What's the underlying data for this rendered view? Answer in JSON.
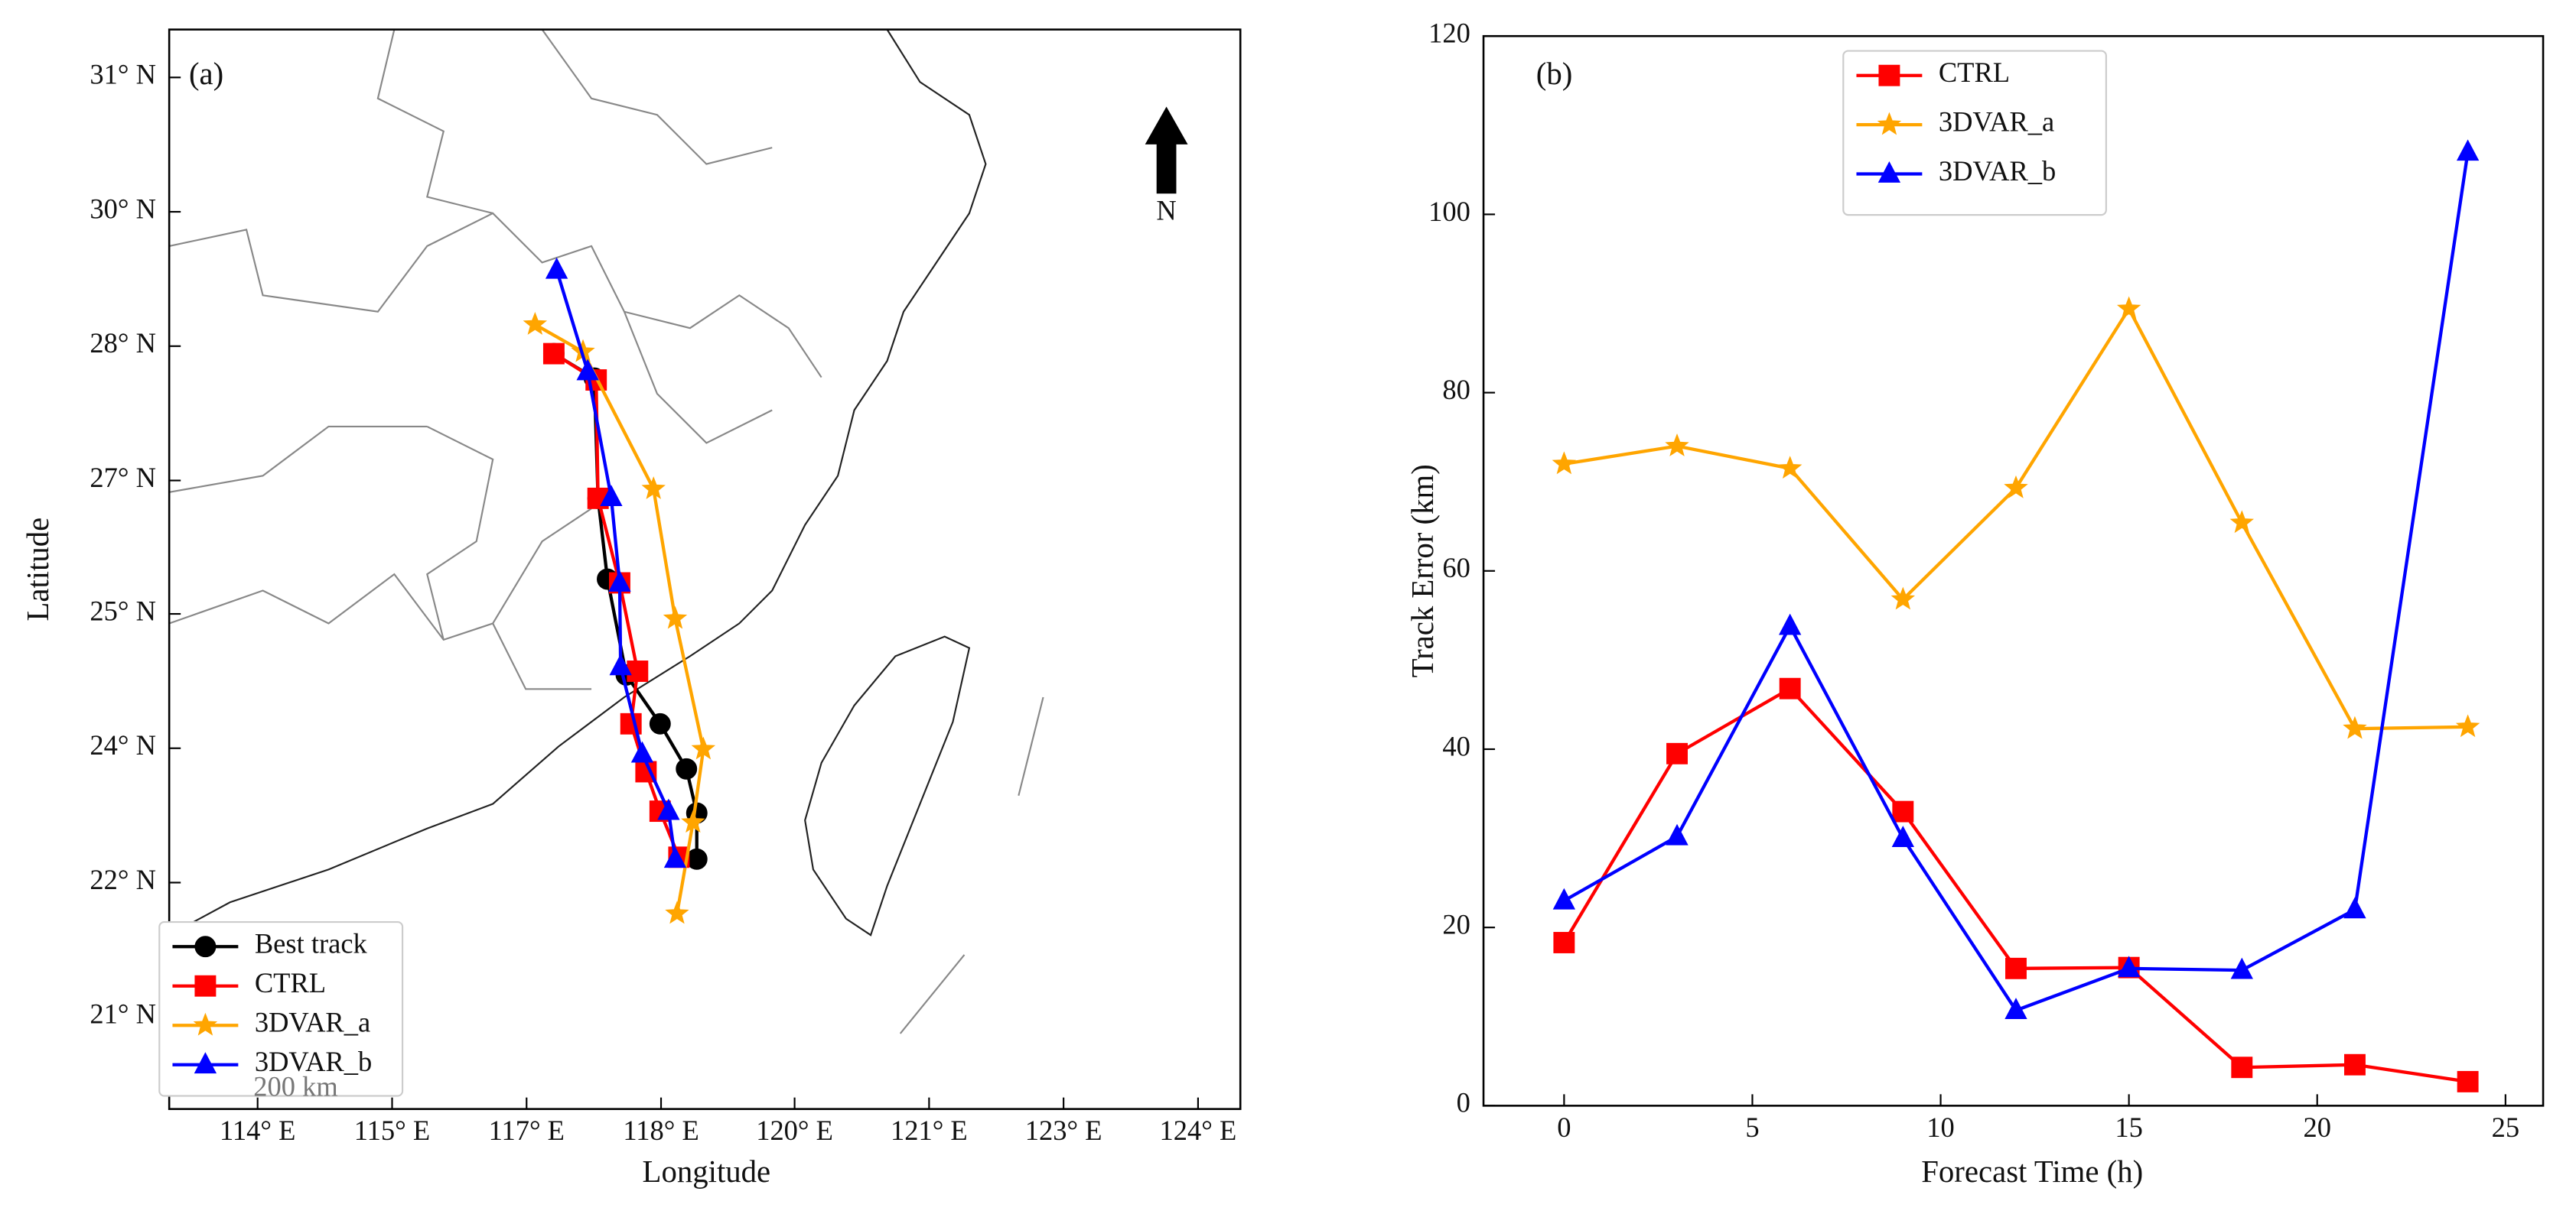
{
  "chart_data": [
    {
      "type": "line",
      "panel_label": "(a)",
      "north_label": "N",
      "scale_label": "200 km",
      "x_label": "Longitude",
      "y_label": "Latitude",
      "xlim": [
        113.06,
        124.45
      ],
      "ylim": [
        20.02,
        31.51
      ],
      "xticks": [
        {
          "value": 114,
          "label": "114° E"
        },
        {
          "value": 115.43,
          "label": "115° E"
        },
        {
          "value": 116.86,
          "label": "117° E"
        },
        {
          "value": 118.29,
          "label": "118° E"
        },
        {
          "value": 119.71,
          "label": "120° E"
        },
        {
          "value": 121.14,
          "label": "121° E"
        },
        {
          "value": 122.57,
          "label": "123° E"
        },
        {
          "value": 124,
          "label": "124° E"
        }
      ],
      "yticks": [
        {
          "value": 31,
          "label": "31° N"
        },
        {
          "value": 29.57,
          "label": "30° N"
        },
        {
          "value": 28.14,
          "label": "28° N"
        },
        {
          "value": 26.71,
          "label": "27° N"
        },
        {
          "value": 25.29,
          "label": "25° N"
        },
        {
          "value": 23.86,
          "label": "24° N"
        },
        {
          "value": 22.43,
          "label": "22° N"
        },
        {
          "value": 21,
          "label": "21° N"
        }
      ],
      "legend": "lower left",
      "series": [
        {
          "name": "Best track",
          "color": "#000000",
          "marker": "circle",
          "x": [
            117.15,
            117.58,
            117.62,
            117.72,
            117.92,
            118.28,
            118.56,
            118.67,
            118.67
          ],
          "values": [
            28.06,
            27.8,
            26.52,
            25.66,
            24.64,
            24.12,
            23.64,
            23.17,
            22.68
          ]
        },
        {
          "name": "CTRL",
          "color": "#ff0000",
          "marker": "square",
          "x": [
            117.15,
            117.6,
            117.62,
            117.85,
            118.04,
            117.97,
            118.13,
            118.28,
            118.48
          ],
          "values": [
            28.06,
            27.78,
            26.52,
            25.62,
            24.68,
            24.12,
            23.61,
            23.19,
            22.7
          ]
        },
        {
          "name": "3DVAR_a",
          "color": "#ffa500",
          "marker": "star",
          "x": [
            116.95,
            117.46,
            118.21,
            118.44,
            118.74,
            118.63,
            118.46
          ],
          "values": [
            28.37,
            28.08,
            26.62,
            25.24,
            23.85,
            23.07,
            22.1
          ]
        },
        {
          "name": "3DVAR_b",
          "color": "#0000ff",
          "marker": "triangle",
          "x": [
            117.18,
            117.51,
            117.76,
            117.85,
            117.86,
            118.09,
            118.37,
            118.44
          ],
          "values": [
            28.95,
            27.87,
            26.53,
            25.62,
            24.73,
            23.8,
            23.19,
            22.68
          ]
        }
      ]
    },
    {
      "type": "line",
      "panel_label": "(b)",
      "x_label": "Forecast Time (h)",
      "y_label": "Track Error (km)",
      "xlim": [
        -2.14,
        26
      ],
      "ylim": [
        0,
        120
      ],
      "xticks": [
        0,
        5,
        10,
        15,
        20,
        25
      ],
      "yticks": [
        0,
        20,
        40,
        60,
        80,
        100,
        120
      ],
      "legend": "upper left",
      "x": [
        0,
        3,
        6,
        9,
        12,
        15,
        18,
        21,
        24
      ],
      "series": [
        {
          "name": "CTRL",
          "color": "#ff0000",
          "marker": "square",
          "values": [
            18.3,
            39.5,
            46.8,
            33,
            15.4,
            15.5,
            4.3,
            4.6,
            2.7
          ]
        },
        {
          "name": "3DVAR_a",
          "color": "#ffa500",
          "marker": "star",
          "values": [
            72,
            74,
            71.5,
            56.8,
            69.3,
            89.4,
            65.4,
            42.3,
            42.5
          ]
        },
        {
          "name": "3DVAR_b",
          "color": "#0000ff",
          "marker": "triangle",
          "values": [
            23,
            30.2,
            53.8,
            30,
            10.7,
            15.4,
            15.2,
            22,
            107
          ]
        }
      ]
    }
  ]
}
